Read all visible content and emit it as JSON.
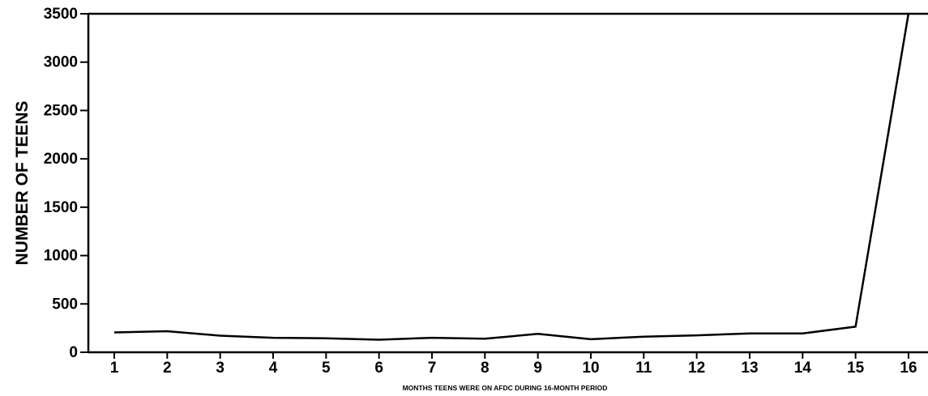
{
  "chart_data": {
    "type": "line",
    "title": "",
    "xlabel": "MONTHS TEENS WERE ON AFDC DURING 16-MONTH PERIOD",
    "ylabel": "NUMBER OF TEENS",
    "x": [
      1,
      2,
      3,
      4,
      5,
      6,
      7,
      8,
      9,
      10,
      11,
      12,
      13,
      14,
      15,
      16
    ],
    "series": [
      {
        "values": [
          205,
          218,
          172,
          150,
          145,
          130,
          150,
          140,
          190,
          135,
          162,
          175,
          195,
          195,
          265,
          3500
        ]
      }
    ],
    "xlim": [
      0.5,
      16.5
    ],
    "ylim": [
      0,
      3500
    ],
    "y_ticks": [
      0,
      500,
      1000,
      1500,
      2000,
      2500,
      3000,
      3500
    ],
    "x_ticks": [
      1,
      2,
      3,
      4,
      5,
      6,
      7,
      8,
      9,
      10,
      11,
      12,
      13,
      14,
      15,
      16
    ],
    "grid": false,
    "legend": "none",
    "line_color": "#000000"
  }
}
